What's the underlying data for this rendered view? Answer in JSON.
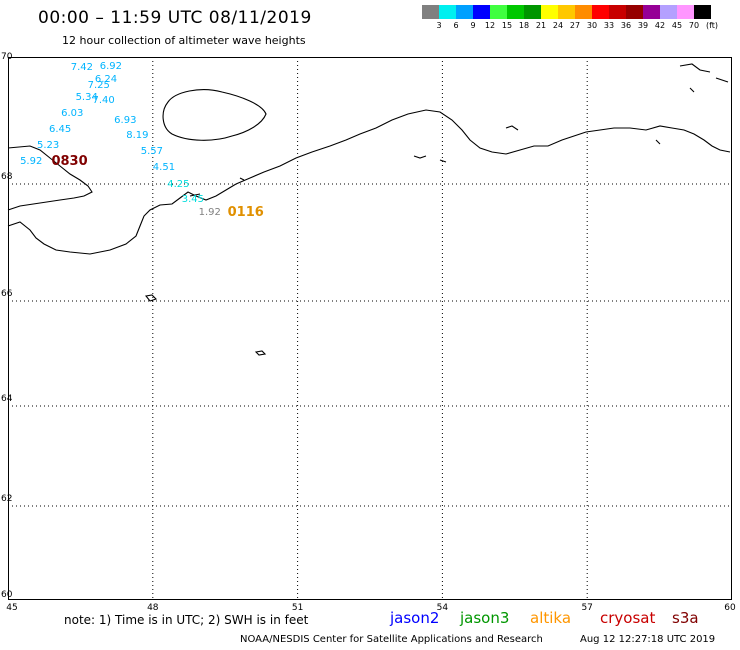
{
  "header": {
    "title": "00:00 – 11:59 UTC 08/11/2019",
    "subtitle": "12 hour collection of altimeter wave heights"
  },
  "legend": {
    "colors": [
      "#808080",
      "#00f0f0",
      "#00a0ff",
      "#0000ff",
      "#40ff40",
      "#00c800",
      "#009600",
      "#ffff00",
      "#ffc800",
      "#ff8c00",
      "#ff0000",
      "#c80000",
      "#960000",
      "#960096",
      "#b4a0ff",
      "#ff96ff",
      "#000000"
    ],
    "labels": [
      "3",
      "6",
      "9",
      "12",
      "15",
      "18",
      "21",
      "24",
      "27",
      "30",
      "33",
      "36",
      "39",
      "42",
      "45",
      "70"
    ],
    "unit": "(ft)"
  },
  "axes": {
    "lat_labels": [
      "70",
      "68",
      "66",
      "64",
      "62",
      "60"
    ],
    "lon_labels": [
      "45",
      "48",
      "51",
      "54",
      "57",
      "60"
    ]
  },
  "observations": [
    {
      "value": "7.42",
      "lon": 46.3,
      "lat": 69.83,
      "color": "cyan"
    },
    {
      "value": "6.92",
      "lon": 46.9,
      "lat": 69.85,
      "color": "cyan"
    },
    {
      "value": "6.24",
      "lon": 46.8,
      "lat": 69.63,
      "color": "cyan"
    },
    {
      "value": "7.25",
      "lon": 46.65,
      "lat": 69.55,
      "color": "cyan"
    },
    {
      "value": "5.34",
      "lon": 46.4,
      "lat": 69.35,
      "color": "cyan"
    },
    {
      "value": "7.40",
      "lon": 46.75,
      "lat": 69.3,
      "color": "cyan"
    },
    {
      "value": "6.03",
      "lon": 46.1,
      "lat": 69.1,
      "color": "cyan"
    },
    {
      "value": "6.93",
      "lon": 47.2,
      "lat": 69.0,
      "color": "cyan"
    },
    {
      "value": "6.45",
      "lon": 45.85,
      "lat": 68.85,
      "color": "cyan"
    },
    {
      "value": "8.19",
      "lon": 47.45,
      "lat": 68.75,
      "color": "cyan"
    },
    {
      "value": "5.23",
      "lon": 45.6,
      "lat": 68.6,
      "color": "cyan"
    },
    {
      "value": "5.57",
      "lon": 47.75,
      "lat": 68.5,
      "color": "cyan"
    },
    {
      "value": "5.92",
      "lon": 45.25,
      "lat": 68.35,
      "color": "cyan"
    },
    {
      "value": "4.51",
      "lon": 48.0,
      "lat": 68.25,
      "color": "cyan"
    },
    {
      "value": "4.25",
      "lon": 48.3,
      "lat": 67.98,
      "color": "green"
    },
    {
      "value": "3.45",
      "lon": 48.6,
      "lat": 67.72,
      "color": "green"
    },
    {
      "value": "1.92",
      "lon": 48.95,
      "lat": 67.5,
      "color": "gray"
    }
  ],
  "pass_times": [
    {
      "label": "0830",
      "lon": 45.9,
      "lat": 68.35,
      "color": "#800000"
    },
    {
      "label": "0116",
      "lon": 49.55,
      "lat": 67.5,
      "color": "#e09000"
    }
  ],
  "footer": {
    "note": "note:  1) Time is in UTC; 2) SWH is in feet",
    "satellites": [
      {
        "name": "jason2",
        "color": "#0000ff"
      },
      {
        "name": "jason3",
        "color": "#009600"
      },
      {
        "name": "altika",
        "color": "#ff9600"
      },
      {
        "name": "cryosat",
        "color": "#c80000"
      },
      {
        "name": "s3a",
        "color": "#800000"
      }
    ],
    "credit": "NOAA/NESDIS Center for Satellite Applications and Research",
    "timestamp": "Aug 12 12:27:18 UTC 2019"
  }
}
